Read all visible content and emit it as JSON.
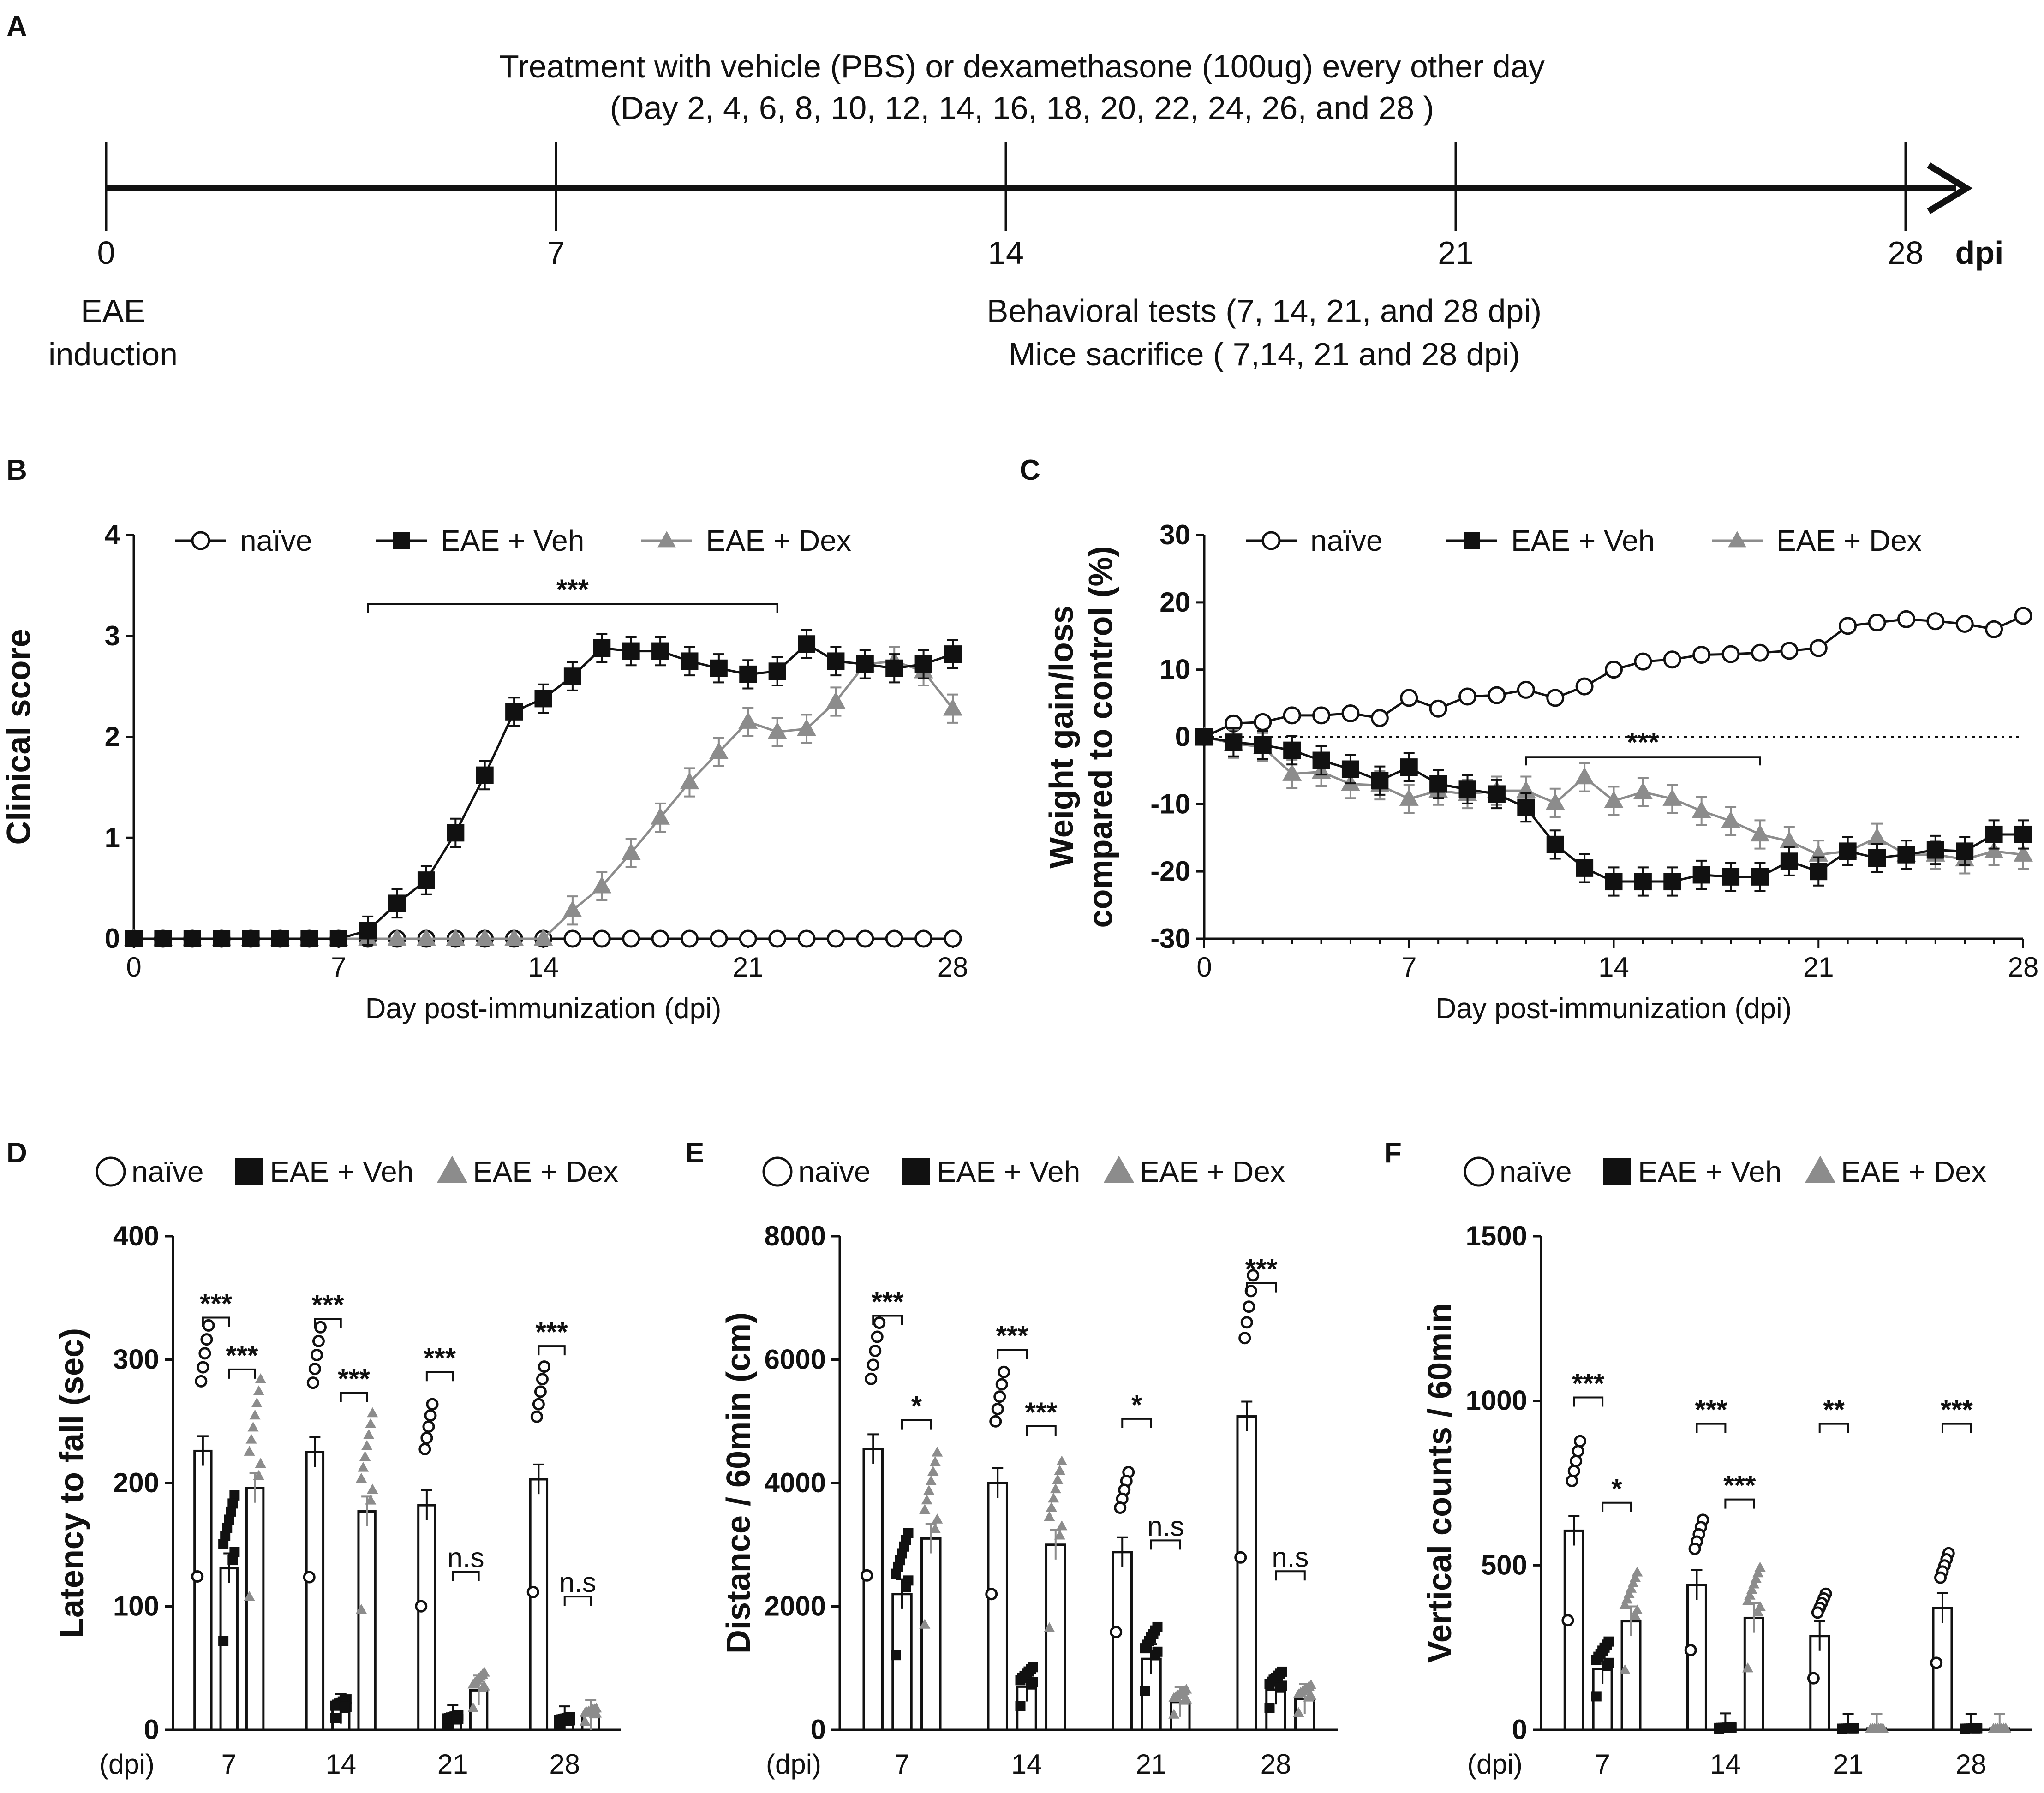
{
  "panel_a": {
    "label": "A",
    "treatment_line1": "Treatment with vehicle (PBS) or dexamethasone (100ug) every other day",
    "treatment_line2": "(Day 2, 4, 6, 8, 10, 12, 14, 16, 18, 20, 22, 24, 26, and 28 )",
    "ticks": [
      "0",
      "7",
      "14",
      "21",
      "28"
    ],
    "unit": "dpi",
    "eae_line1": "EAE",
    "eae_line2": "induction",
    "behav_line1": "Behavioral tests (7, 14, 21, and 28 dpi)",
    "behav_line2": "Mice sacrifice ( 7,14, 21 and 28 dpi)"
  },
  "legend": {
    "naive": "naïve",
    "veh": "EAE + Veh",
    "dex": "EAE + Dex"
  },
  "colors": {
    "black": "#111111",
    "gray": "#8c8c8c",
    "white": "#ffffff"
  },
  "chart_data": [
    {
      "panel": "B",
      "type": "line",
      "ylabel": "Clinical score",
      "xlabel": "Day post-immunization (dpi)",
      "xlim": [
        0,
        28
      ],
      "ylim": [
        0,
        4
      ],
      "xticks": [
        "0",
        "7",
        "14",
        "21",
        "28"
      ],
      "yticks": [
        "0",
        "1",
        "2",
        "3",
        "4"
      ],
      "annotation": "***",
      "bracket_days": [
        8,
        22
      ],
      "x": [
        0,
        1,
        2,
        3,
        4,
        5,
        6,
        7,
        8,
        9,
        10,
        11,
        12,
        13,
        14,
        15,
        16,
        17,
        18,
        19,
        20,
        21,
        22,
        23,
        24,
        25,
        26,
        27,
        28
      ],
      "series": [
        {
          "name": "naïve",
          "values": [
            0,
            0,
            0,
            0,
            0,
            0,
            0,
            0,
            0,
            0,
            0,
            0,
            0,
            0,
            0,
            0,
            0,
            0,
            0,
            0,
            0,
            0,
            0,
            0,
            0,
            0,
            0,
            0,
            0
          ]
        },
        {
          "name": "EAE + Veh",
          "values": [
            0,
            0,
            0,
            0,
            0,
            0,
            0,
            0,
            0.08,
            0.35,
            0.58,
            1.05,
            1.62,
            2.25,
            2.38,
            2.6,
            2.88,
            2.85,
            2.85,
            2.75,
            2.68,
            2.62,
            2.65,
            2.92,
            2.75,
            2.72,
            2.68,
            2.72,
            2.82
          ]
        },
        {
          "name": "EAE + Dex",
          "values": [
            0,
            0,
            0,
            0,
            0,
            0,
            0,
            0,
            0,
            0,
            0,
            0,
            0,
            0,
            0,
            0.28,
            0.52,
            0.85,
            1.2,
            1.55,
            1.85,
            2.15,
            2.05,
            2.08,
            2.35,
            2.72,
            2.75,
            2.65,
            2.28
          ]
        }
      ]
    },
    {
      "panel": "C",
      "type": "line",
      "ylabel_line1": "Weight gain/loss",
      "ylabel_line2": "compared to control (%)",
      "xlabel": "Day post-immunization (dpi)",
      "xlim": [
        0,
        28
      ],
      "ylim": [
        -30,
        30
      ],
      "xticks": [
        "0",
        "7",
        "14",
        "21",
        "28"
      ],
      "yticks": [
        "-30",
        "-20",
        "-10",
        "0",
        "10",
        "20",
        "30"
      ],
      "annotation": "***",
      "bracket_days": [
        11,
        19
      ],
      "x": [
        0,
        1,
        2,
        3,
        4,
        5,
        6,
        7,
        8,
        9,
        10,
        11,
        12,
        13,
        14,
        15,
        16,
        17,
        18,
        19,
        20,
        21,
        22,
        23,
        24,
        25,
        26,
        27,
        28
      ],
      "series": [
        {
          "name": "naïve",
          "values": [
            0,
            2,
            2.2,
            3.2,
            3.2,
            3.5,
            2.8,
            5.8,
            4.2,
            6,
            6.2,
            7,
            5.8,
            7.5,
            10,
            11.2,
            11.5,
            12.2,
            12.3,
            12.5,
            12.8,
            13.2,
            16.5,
            17,
            17.5,
            17.2,
            16.8,
            16,
            18
          ]
        },
        {
          "name": "EAE + Veh",
          "values": [
            0,
            -0.8,
            -1.2,
            -2,
            -3.5,
            -4.8,
            -6.5,
            -4.5,
            -7,
            -7.8,
            -8.5,
            -10.5,
            -16,
            -19.5,
            -21.5,
            -21.5,
            -21.5,
            -20.5,
            -20.8,
            -20.8,
            -18.5,
            -20,
            -17,
            -18,
            -17.5,
            -16.8,
            -17,
            -14.5,
            -14.5
          ]
        },
        {
          "name": "EAE + Dex",
          "values": [
            0,
            -1,
            -1.5,
            -5.5,
            -5.2,
            -7,
            -7.2,
            -9.2,
            -8,
            -8.5,
            -8,
            -8,
            -9.8,
            -6,
            -9.5,
            -8.2,
            -9.2,
            -11,
            -12.5,
            -14.5,
            -15.5,
            -17.5,
            -17,
            -15,
            -17.5,
            -17.5,
            -18.2,
            -17,
            -17.5
          ]
        }
      ]
    },
    {
      "panel": "D",
      "type": "bar",
      "ylabel": "Latency to fall (sec)",
      "xlabel": "(dpi)",
      "categories": [
        "7",
        "14",
        "21",
        "28"
      ],
      "ylim": [
        0,
        400
      ],
      "yticks": [
        "0",
        "100",
        "200",
        "300",
        "400"
      ],
      "series": [
        {
          "name": "naïve",
          "values": [
            226,
            225,
            182,
            203
          ]
        },
        {
          "name": "EAE + Veh",
          "values": [
            131,
            17,
            8,
            7
          ]
        },
        {
          "name": "EAE + Dex",
          "values": [
            196,
            177,
            32,
            12
          ]
        }
      ],
      "significance": [
        {
          "dpi": "7",
          "label": "***"
        },
        {
          "dpi": "7",
          "label": "***"
        },
        {
          "dpi": "14",
          "label": "***"
        },
        {
          "dpi": "14",
          "label": "***"
        },
        {
          "dpi": "21",
          "label": "***"
        },
        {
          "dpi": "21",
          "label": "n.s"
        },
        {
          "dpi": "28",
          "label": "***"
        },
        {
          "dpi": "28",
          "label": "n.s"
        }
      ]
    },
    {
      "panel": "E",
      "type": "bar",
      "ylabel": "Distance / 60min (cm)",
      "xlabel": "(dpi)",
      "categories": [
        "7",
        "14",
        "21",
        "28"
      ],
      "ylim": [
        0,
        8000
      ],
      "yticks": [
        "0",
        "2000",
        "4000",
        "6000",
        "8000"
      ],
      "series": [
        {
          "name": "naïve",
          "values": [
            4550,
            4000,
            2880,
            5080
          ]
        },
        {
          "name": "EAE + Veh",
          "values": [
            2200,
            700,
            1150,
            650
          ]
        },
        {
          "name": "EAE + Dex",
          "values": [
            3100,
            3000,
            450,
            500
          ]
        }
      ],
      "significance": [
        {
          "dpi": "7",
          "label": "***"
        },
        {
          "dpi": "7",
          "label": "*"
        },
        {
          "dpi": "14",
          "label": "***"
        },
        {
          "dpi": "14",
          "label": "***"
        },
        {
          "dpi": "21",
          "label": "*"
        },
        {
          "dpi": "21",
          "label": "n.s"
        },
        {
          "dpi": "28",
          "label": "***"
        },
        {
          "dpi": "28",
          "label": "n.s"
        }
      ]
    },
    {
      "panel": "F",
      "type": "bar",
      "ylabel": "Vertical counts / 60min",
      "xlabel": "(dpi)",
      "categories": [
        "7",
        "14",
        "21",
        "28"
      ],
      "ylim": [
        0,
        1500
      ],
      "yticks": [
        "0",
        "500",
        "1000",
        "1500"
      ],
      "series": [
        {
          "name": "naïve",
          "values": [
            605,
            440,
            285,
            370
          ]
        },
        {
          "name": "EAE + Veh",
          "values": [
            185,
            5,
            3,
            3
          ]
        },
        {
          "name": "EAE + Dex",
          "values": [
            330,
            340,
            3,
            3
          ]
        }
      ],
      "significance": [
        {
          "dpi": "7",
          "label": "***"
        },
        {
          "dpi": "7",
          "label": "*"
        },
        {
          "dpi": "14",
          "label": "***"
        },
        {
          "dpi": "14",
          "label": "***"
        },
        {
          "dpi": "21",
          "label": "**"
        },
        {
          "dpi": "28",
          "label": "***"
        }
      ]
    }
  ],
  "panel_labels": [
    "B",
    "C",
    "D",
    "E",
    "F"
  ]
}
